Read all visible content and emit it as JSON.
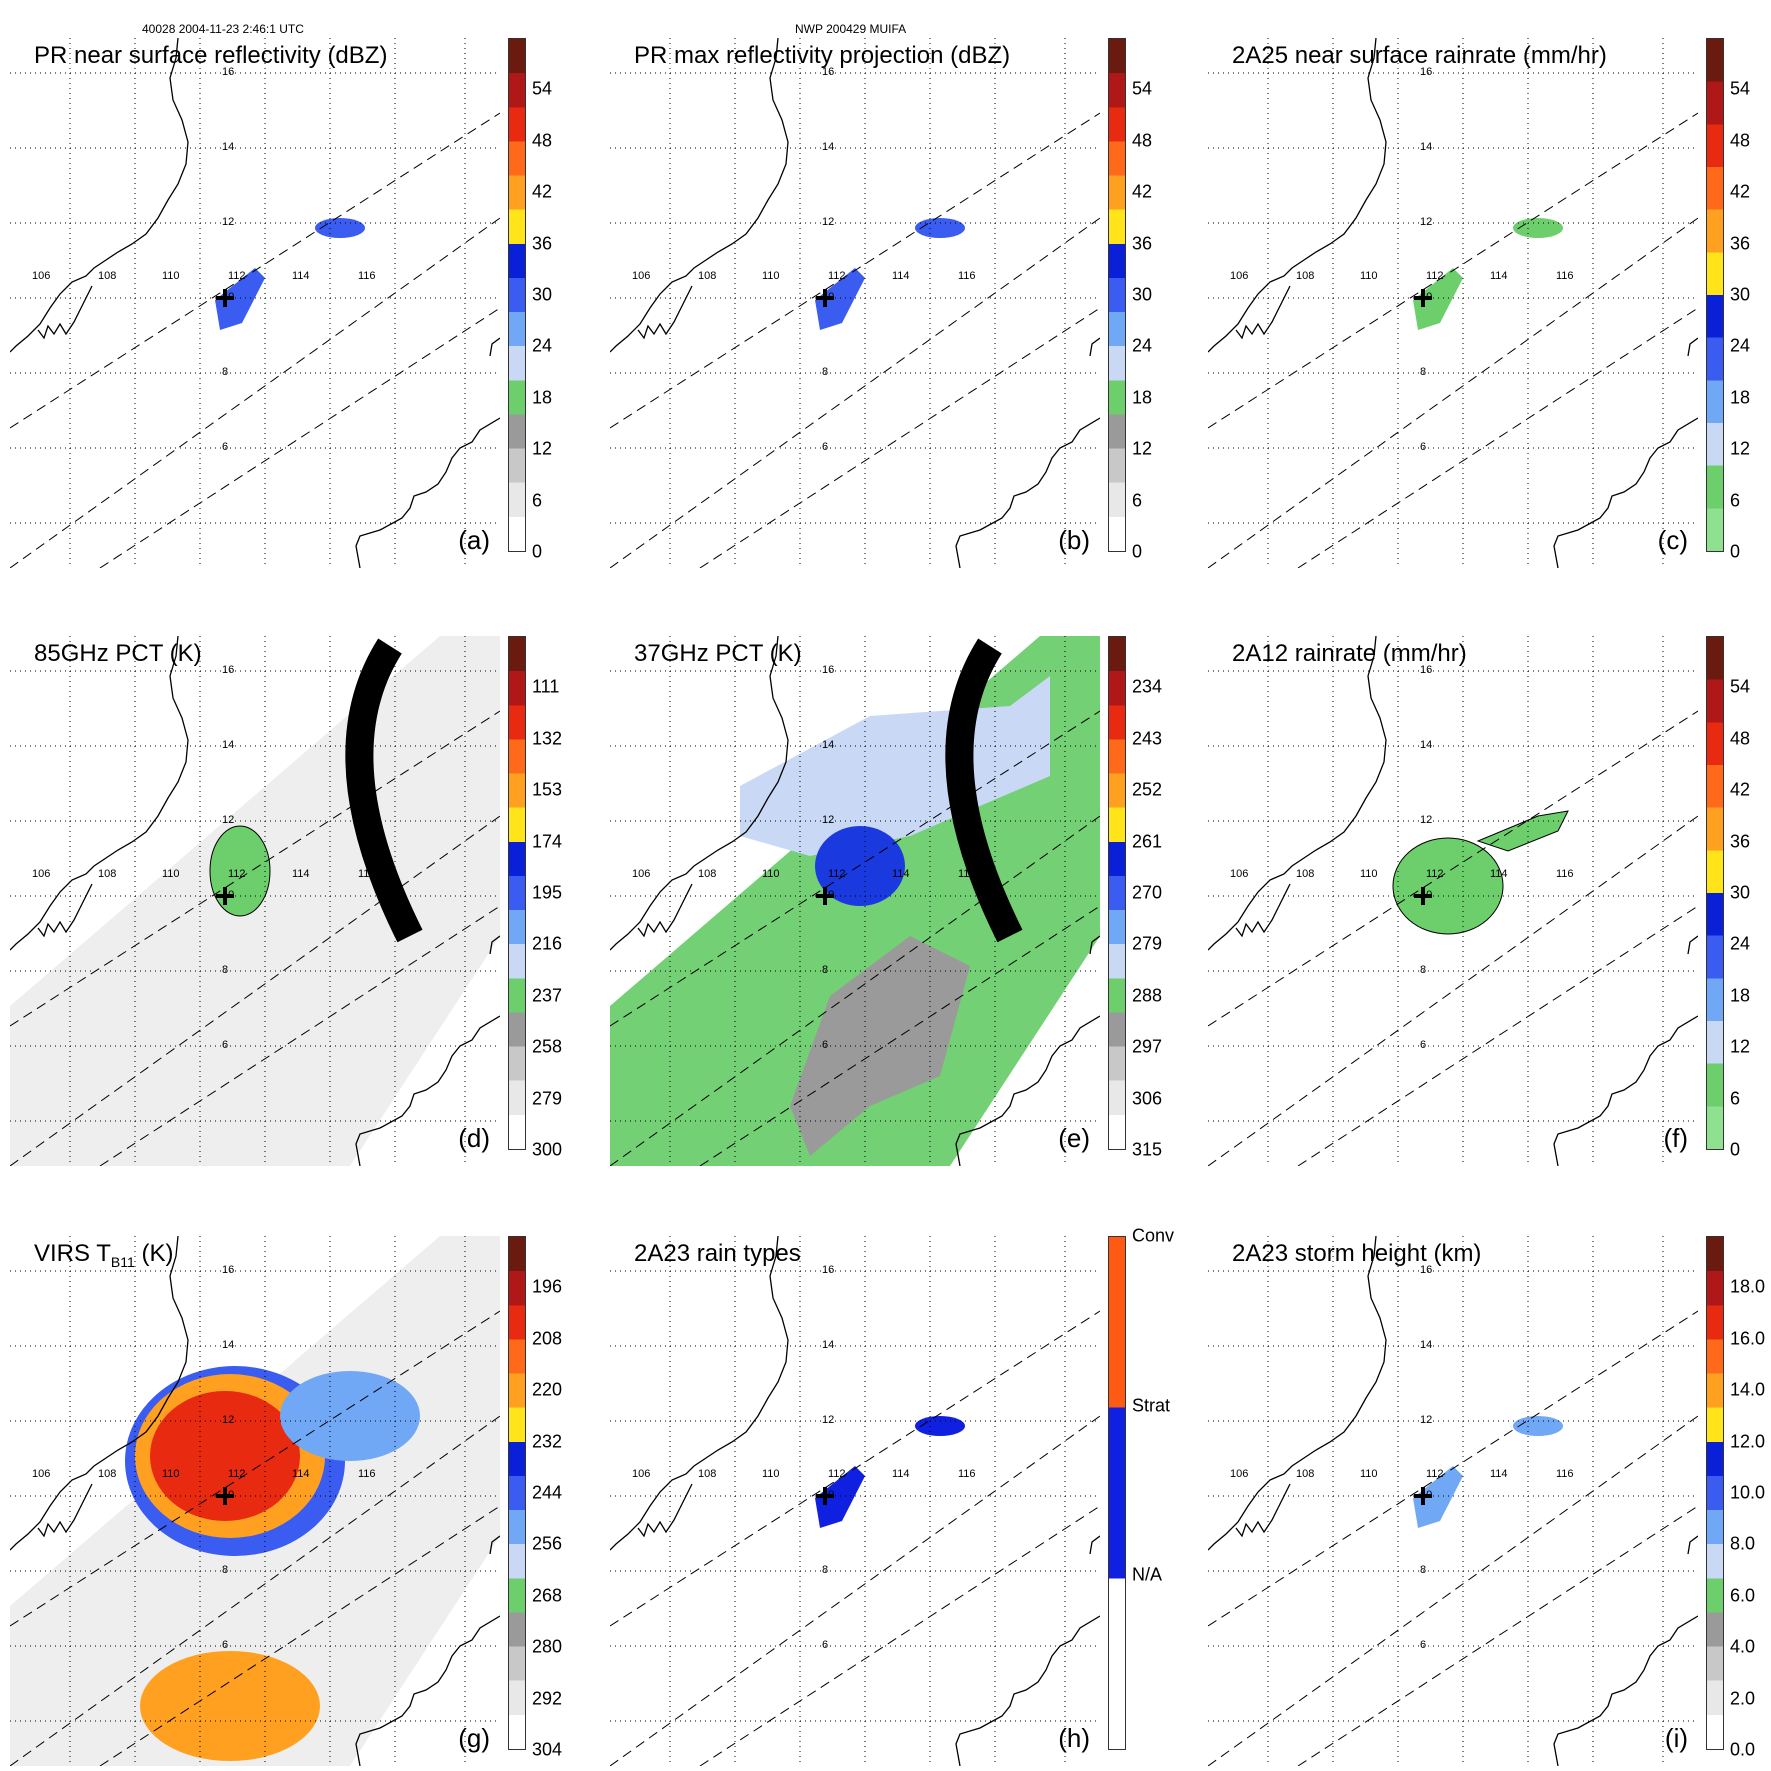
{
  "header": {
    "orbit_time": "40028 2004-11-23 2:46:1 UTC",
    "storm": "NWP 200429 MUIFA"
  },
  "map_labels": {
    "lat": [
      "16",
      "14",
      "12",
      "10",
      "8",
      "6"
    ],
    "lon": [
      "106",
      "108",
      "110",
      "112",
      "114",
      "116"
    ]
  },
  "panels": [
    {
      "id": "a",
      "title": "PR near surface reflectivity (dBZ)",
      "label": "(a)",
      "ticks": [
        "54",
        "48",
        "42",
        "36",
        "30",
        "24",
        "18",
        "12",
        "6",
        "0"
      ],
      "colors": [
        "#6b1a10",
        "#b01818",
        "#e82a10",
        "#ff6a1a",
        "#ffa020",
        "#ffe41a",
        "#0a1fd8",
        "#3a5cf0",
        "#70a8f5",
        "#c8d8f5",
        "#6ccf6c",
        "#9a9a9a",
        "#c8c8c8",
        "#e8e8e8",
        "#ffffff"
      ],
      "bg": "none"
    },
    {
      "id": "b",
      "title": "PR max reflectivity projection (dBZ)",
      "label": "(b)",
      "ticks": [
        "54",
        "48",
        "42",
        "36",
        "30",
        "24",
        "18",
        "12",
        "6",
        "0"
      ],
      "colors": [
        "#6b1a10",
        "#b01818",
        "#e82a10",
        "#ff6a1a",
        "#ffa020",
        "#ffe41a",
        "#0a1fd8",
        "#3a5cf0",
        "#70a8f5",
        "#c8d8f5",
        "#6ccf6c",
        "#9a9a9a",
        "#c8c8c8",
        "#e8e8e8",
        "#ffffff"
      ],
      "bg": "none"
    },
    {
      "id": "c",
      "title": "2A25 near surface rainrate (mm/hr)",
      "label": "(c)",
      "ticks": [
        "54",
        "48",
        "42",
        "36",
        "30",
        "24",
        "18",
        "12",
        "6",
        "0"
      ],
      "colors": [
        "#6b1a10",
        "#b01818",
        "#e82a10",
        "#ff6a1a",
        "#ffa020",
        "#ffe41a",
        "#0a1fd8",
        "#3a5cf0",
        "#70a8f5",
        "#c8d8f5",
        "#6ccf6c",
        "#8fe08f"
      ],
      "bg": "none"
    },
    {
      "id": "d",
      "title": "85GHz PCT (K)",
      "label": "(d)",
      "ticks": [
        "111",
        "132",
        "153",
        "174",
        "195",
        "216",
        "237",
        "258",
        "279",
        "300"
      ],
      "colors": [
        "#6b1a10",
        "#b01818",
        "#e82a10",
        "#ff6a1a",
        "#ffa020",
        "#ffe41a",
        "#0a1fd8",
        "#3a5cf0",
        "#70a8f5",
        "#c8d8f5",
        "#6ccf6c",
        "#9a9a9a",
        "#c8c8c8",
        "#e8e8e8",
        "#ffffff"
      ],
      "bg": "gray"
    },
    {
      "id": "e",
      "title": "37GHz PCT (K)",
      "label": "(e)",
      "ticks": [
        "234",
        "243",
        "252",
        "261",
        "270",
        "279",
        "288",
        "297",
        "306",
        "315"
      ],
      "colors": [
        "#6b1a10",
        "#b01818",
        "#e82a10",
        "#ff6a1a",
        "#ffa020",
        "#ffe41a",
        "#0a1fd8",
        "#3a5cf0",
        "#70a8f5",
        "#c8d8f5",
        "#6ccf6c",
        "#9a9a9a",
        "#c8c8c8",
        "#e8e8e8",
        "#ffffff"
      ],
      "bg": "green"
    },
    {
      "id": "f",
      "title": "2A12 rainrate (mm/hr)",
      "label": "(f)",
      "ticks": [
        "54",
        "48",
        "42",
        "36",
        "30",
        "24",
        "18",
        "12",
        "6",
        "0"
      ],
      "colors": [
        "#6b1a10",
        "#b01818",
        "#e82a10",
        "#ff6a1a",
        "#ffa020",
        "#ffe41a",
        "#0a1fd8",
        "#3a5cf0",
        "#70a8f5",
        "#c8d8f5",
        "#6ccf6c",
        "#8fe08f"
      ],
      "bg": "none"
    },
    {
      "id": "g",
      "title": "VIRS T",
      "title_sub": "B11",
      "title_tail": " (K)",
      "label": "(g)",
      "ticks": [
        "196",
        "208",
        "220",
        "232",
        "244",
        "256",
        "268",
        "280",
        "292",
        "304"
      ],
      "colors": [
        "#6b1a10",
        "#b01818",
        "#e82a10",
        "#ff6a1a",
        "#ffa020",
        "#ffe41a",
        "#0a1fd8",
        "#3a5cf0",
        "#70a8f5",
        "#c8d8f5",
        "#6ccf6c",
        "#9a9a9a",
        "#c8c8c8",
        "#e8e8e8",
        "#ffffff"
      ],
      "bg": "virs"
    },
    {
      "id": "h",
      "title": "2A23 rain types",
      "label": "(h)",
      "ticks": [
        "Conv",
        "Strat",
        "N/A"
      ],
      "colors": [
        "#ff5a14",
        "#1020e0",
        "#ffffff"
      ],
      "bg": "none"
    },
    {
      "id": "i",
      "title": "2A23 storm height (km)",
      "label": "(i)",
      "ticks": [
        "18.0",
        "16.0",
        "14.0",
        "12.0",
        "10.0",
        "8.0",
        "6.0",
        "4.0",
        "2.0",
        "0.0"
      ],
      "colors": [
        "#6b1a10",
        "#b01818",
        "#e82a10",
        "#ff6a1a",
        "#ffa020",
        "#ffe41a",
        "#0a1fd8",
        "#3a5cf0",
        "#70a8f5",
        "#c8d8f5",
        "#6ccf6c",
        "#9a9a9a",
        "#c8c8c8",
        "#e8e8e8",
        "#ffffff"
      ],
      "bg": "none"
    }
  ]
}
